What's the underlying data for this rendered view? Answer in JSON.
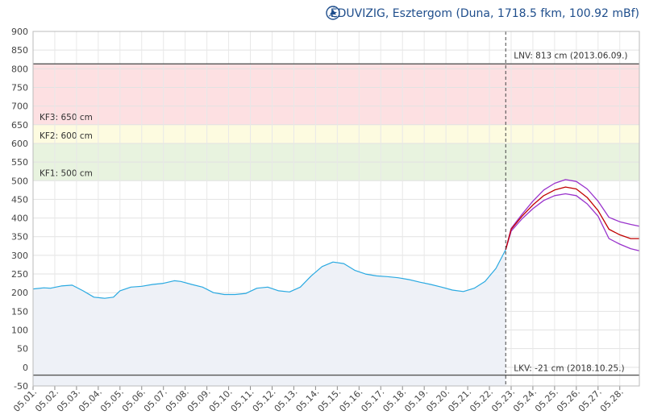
{
  "header": {
    "logo_icon": "eduvizig-logo-icon",
    "title": "ÉDUVIZIG, Esztergom (Duna, 1718.5 fkm, 100.92 mBf)"
  },
  "chart_data": {
    "type": "line",
    "y_unit": "cm",
    "ylim": [
      -50,
      900
    ],
    "yticks": [
      -50,
      0,
      50,
      100,
      150,
      200,
      250,
      300,
      350,
      400,
      450,
      500,
      550,
      600,
      650,
      700,
      750,
      800,
      850,
      900
    ],
    "x_range_days": [
      0,
      27.9
    ],
    "x_tick_labels": [
      "05.01.",
      "05.02.",
      "05.03.",
      "05.04.",
      "05.05.",
      "05.06.",
      "05.07.",
      "05.08.",
      "05.09.",
      "05.10.",
      "05.11.",
      "05.12.",
      "05.13.",
      "05.14.",
      "05.15.",
      "05.16.",
      "05.17.",
      "05.18.",
      "05.19.",
      "05.20.",
      "05.21.",
      "05.22.",
      "05.23.",
      "05.24.",
      "05.25.",
      "05.26.",
      "05.27.",
      "05.28."
    ],
    "grid": true,
    "bands": [
      {
        "from": 500,
        "to": 600,
        "color": "#e8f3df",
        "label": "KF1: 500 cm"
      },
      {
        "from": 600,
        "to": 650,
        "color": "#fdfbe0",
        "label": "KF2: 600 cm"
      },
      {
        "from": 650,
        "to": 813,
        "color": "#fde0e2",
        "label": "KF3: 650 cm"
      }
    ],
    "reference_lines": [
      {
        "value": 813,
        "label": "LNV: 813 cm (2013.06.09.)"
      },
      {
        "value": -21,
        "label": "LKV: -21 cm (2018.10.25.)"
      }
    ],
    "now_marker": {
      "x": 21.75
    },
    "series": [
      {
        "role": "measured",
        "color": "#29a9e1",
        "x": [
          0,
          0.5,
          0.8,
          1.3,
          1.8,
          2.3,
          2.8,
          3.3,
          3.7,
          4.0,
          4.5,
          5.0,
          5.5,
          6.0,
          6.5,
          6.8,
          7.3,
          7.8,
          8.3,
          8.8,
          9.3,
          9.8,
          10.3,
          10.8,
          11.3,
          11.8,
          12.3,
          12.8,
          13.3,
          13.8,
          14.3,
          14.8,
          15.3,
          15.8,
          16.3,
          16.8,
          17.3,
          17.8,
          18.3,
          18.8,
          19.3,
          19.8,
          20.3,
          20.8,
          21.3,
          21.75
        ],
        "values": [
          210,
          213,
          212,
          218,
          220,
          205,
          188,
          185,
          188,
          205,
          215,
          217,
          222,
          225,
          232,
          230,
          222,
          215,
          200,
          195,
          195,
          198,
          212,
          215,
          205,
          202,
          215,
          245,
          270,
          282,
          278,
          260,
          250,
          245,
          243,
          240,
          235,
          228,
          222,
          215,
          207,
          203,
          212,
          230,
          265,
          315
        ]
      },
      {
        "role": "forecast",
        "color": "#c00000",
        "x": [
          21.75,
          22.0,
          22.5,
          23.0,
          23.5,
          24.0,
          24.5,
          25.0,
          25.5,
          26.0,
          26.5,
          27.0,
          27.5,
          27.9
        ],
        "values": [
          315,
          370,
          405,
          435,
          460,
          475,
          483,
          478,
          455,
          420,
          370,
          355,
          345,
          345
        ]
      },
      {
        "role": "forecast-upper",
        "color": "#9933cc",
        "x": [
          21.75,
          22.0,
          22.5,
          23.0,
          23.5,
          24.0,
          24.5,
          25.0,
          25.5,
          26.0,
          26.5,
          27.0,
          27.5,
          27.9
        ],
        "values": [
          315,
          372,
          410,
          445,
          475,
          493,
          503,
          498,
          478,
          445,
          402,
          390,
          383,
          378
        ]
      },
      {
        "role": "forecast-lower",
        "color": "#9933cc",
        "x": [
          21.75,
          22.0,
          22.5,
          23.0,
          23.5,
          24.0,
          24.5,
          25.0,
          25.5,
          26.0,
          26.5,
          27.0,
          27.5,
          27.9
        ],
        "values": [
          315,
          365,
          398,
          425,
          447,
          460,
          465,
          460,
          438,
          405,
          345,
          330,
          318,
          312
        ]
      }
    ]
  }
}
